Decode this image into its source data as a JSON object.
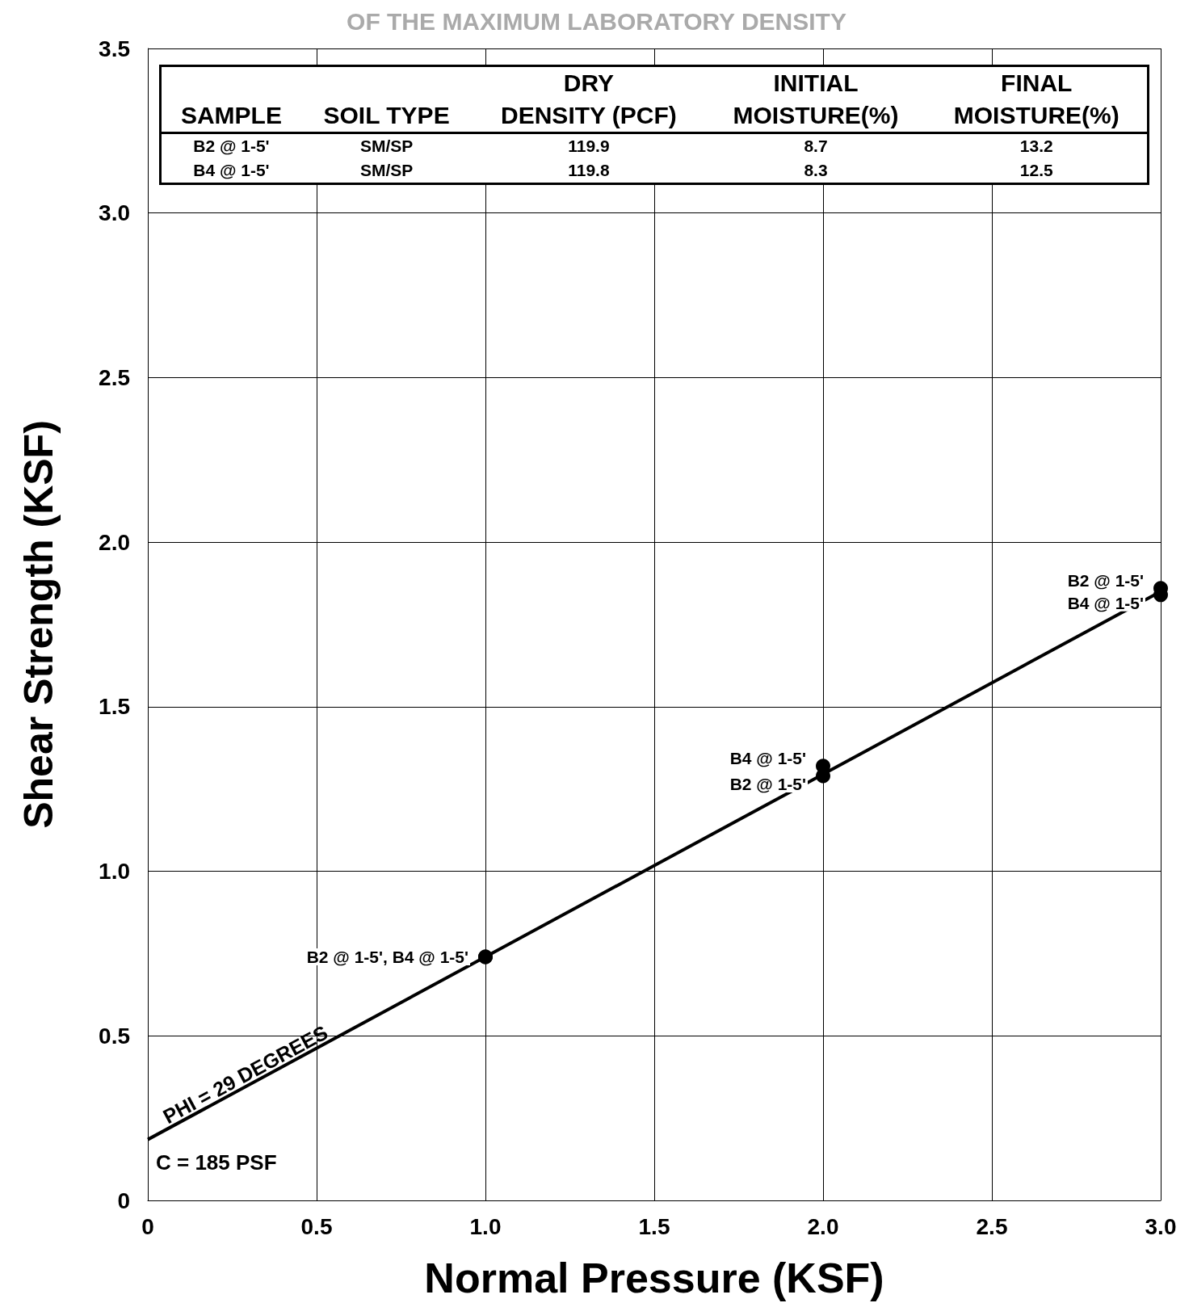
{
  "chart_data": {
    "type": "scatter",
    "title": "OF THE MAXIMUM LABORATORY DENSITY",
    "xlabel": "Normal Pressure (KSF)",
    "ylabel": "Shear Strength (KSF)",
    "xlim": [
      0,
      3
    ],
    "xticks": [
      0,
      {
        "value": 0.5,
        "label": "0.5"
      },
      {
        "value": 1,
        "label": "1.0"
      },
      {
        "value": 1.5,
        "label": "1.5"
      },
      {
        "value": 2,
        "label": "2.0"
      },
      {
        "value": 2.5,
        "label": "2.5"
      },
      {
        "value": 3,
        "label": "3.0"
      }
    ],
    "ylim": [
      0,
      3.5
    ],
    "yticks": [
      0,
      {
        "value": 0.5,
        "label": "0.5"
      },
      {
        "value": 1,
        "label": "1.0"
      },
      {
        "value": 1.5,
        "label": "1.5"
      },
      {
        "value": 2,
        "label": "2.0"
      },
      {
        "value": 2.5,
        "label": "2.5"
      },
      {
        "value": 3,
        "label": "3.0"
      },
      {
        "value": 3.5,
        "label": "3.5"
      }
    ],
    "grid": true,
    "series": [
      {
        "type": "line",
        "color": "#000000",
        "x": [
          0,
          3
        ],
        "values": [
          0.185,
          1.85
        ]
      },
      {
        "color": "#000000",
        "marker": "circle",
        "x": [
          1,
          2,
          3
        ],
        "values": [
          0.74,
          1.29,
          1.86
        ],
        "value_labels": [
          "B2 @ 1-5', B4 @ 1-5'",
          "B2 @ 1-5'",
          "B2 @ 1-5'"
        ]
      },
      {
        "color": "#000000",
        "marker": "circle",
        "x": [
          1,
          2,
          3
        ],
        "values": [
          0.74,
          1.32,
          1.84
        ],
        "value_labels": [
          null,
          "B4 @ 1-5'",
          "B4 @ 1-5'"
        ]
      }
    ],
    "annotations": [
      "SAMPLE",
      "SOIL TYPE",
      "DRY\nDENSITY (PCF)",
      "INITIAL\nMOISTURE(%)",
      "FINAL\nMOISTURE(%)",
      "B2 @ 1-5'",
      "SM/SP",
      "119.9",
      "8.7",
      "13.2",
      "B4 @ 1-5'",
      "SM/SP",
      "119.8",
      "8.3",
      "12.5",
      "PHI = 29 DEGREES",
      "C = 185 PSF"
    ]
  }
}
